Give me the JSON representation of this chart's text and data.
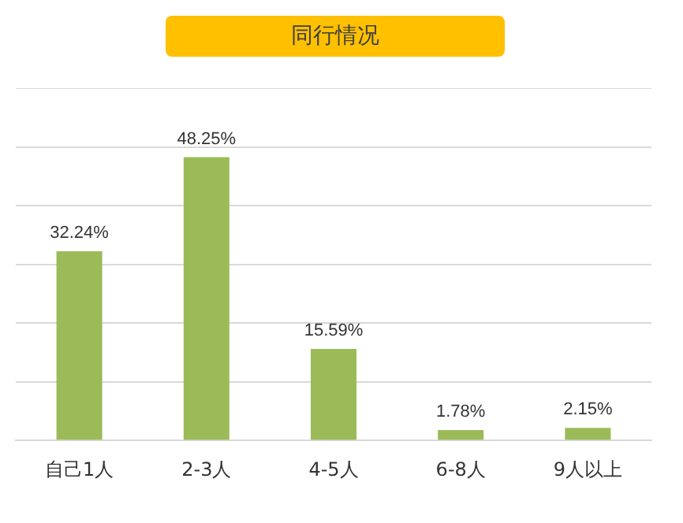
{
  "chart_data": {
    "type": "bar",
    "title": "同行情况",
    "categories": [
      "自己1人",
      "2-3人",
      "4-5人",
      "6-8人",
      "9人以上"
    ],
    "values": [
      32.24,
      48.25,
      15.59,
      1.78,
      2.15
    ],
    "value_labels": [
      "32.24%",
      "48.25%",
      "15.59%",
      "1.78%",
      "2.15%"
    ],
    "color": "#9bbb59",
    "ylim": [
      0,
      60
    ],
    "yticks": [
      {
        "value": 0,
        "label": null
      },
      {
        "value": 10,
        "label": null
      },
      {
        "value": 20,
        "label": null
      },
      {
        "value": 30,
        "label": null
      },
      {
        "value": 40,
        "label": null
      },
      {
        "value": 50,
        "label": null
      },
      {
        "value": 60,
        "label": null
      }
    ],
    "grid": "y",
    "legend": false,
    "tick_labels": "x"
  }
}
